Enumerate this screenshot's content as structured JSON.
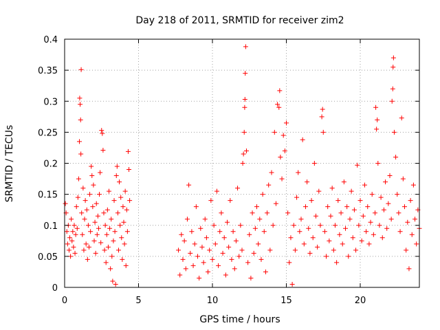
{
  "chart_data": {
    "type": "scatter",
    "title": "Day 218 of 2011, SRMTID for receiver zim2",
    "xlabel": "GPS time / hours",
    "ylabel": "SRMTID / TECUs",
    "xlim": [
      0,
      24
    ],
    "ylim": [
      0,
      0.4
    ],
    "xticks": [
      0,
      5,
      10,
      15,
      20
    ],
    "yticks": [
      0,
      0.05,
      0.1,
      0.15,
      0.2,
      0.25,
      0.3,
      0.35,
      0.4
    ],
    "xtick_labels": [
      "0",
      "5",
      "10",
      "15",
      "20"
    ],
    "ytick_labels": [
      "0",
      "0.05",
      "0.1",
      "0.15",
      "0.2",
      "0.25",
      "0.3",
      "0.35",
      "0.4"
    ],
    "grid": true,
    "marker": "+",
    "color": "#ff0000",
    "series": [
      {
        "name": "SRMTID",
        "points": [
          [
            0.05,
            0.135
          ],
          [
            0.1,
            0.12
          ],
          [
            0.15,
            0.09
          ],
          [
            0.2,
            0.07
          ],
          [
            0.25,
            0.1
          ],
          [
            0.3,
            0.06
          ],
          [
            0.35,
            0.08
          ],
          [
            0.4,
            0.05
          ],
          [
            0.45,
            0.11
          ],
          [
            0.5,
            0.075
          ],
          [
            0.55,
            0.09
          ],
          [
            0.6,
            0.065
          ],
          [
            0.65,
            0.1
          ],
          [
            0.7,
            0.055
          ],
          [
            0.75,
            0.085
          ],
          [
            0.8,
            0.13
          ],
          [
            0.85,
            0.095
          ],
          [
            0.9,
            0.145
          ],
          [
            0.95,
            0.175
          ],
          [
            1.0,
            0.235
          ],
          [
            1.02,
            0.305
          ],
          [
            1.05,
            0.295
          ],
          [
            1.08,
            0.27
          ],
          [
            1.1,
            0.215
          ],
          [
            1.12,
            0.351
          ],
          [
            1.15,
            0.12
          ],
          [
            1.2,
            0.085
          ],
          [
            1.25,
            0.16
          ],
          [
            1.3,
            0.06
          ],
          [
            1.35,
            0.11
          ],
          [
            1.4,
            0.14
          ],
          [
            1.45,
            0.07
          ],
          [
            1.5,
            0.125
          ],
          [
            1.55,
            0.045
          ],
          [
            1.6,
            0.1
          ],
          [
            1.65,
            0.065
          ],
          [
            1.7,
            0.15
          ],
          [
            1.75,
            0.09
          ],
          [
            1.8,
            0.195
          ],
          [
            1.85,
            0.18
          ],
          [
            1.9,
            0.13
          ],
          [
            1.95,
            0.165
          ],
          [
            2.0,
            0.075
          ],
          [
            2.05,
            0.105
          ],
          [
            2.1,
            0.055
          ],
          [
            2.15,
            0.135
          ],
          [
            2.2,
            0.085
          ],
          [
            2.25,
            0.115
          ],
          [
            2.3,
            0.095
          ],
          [
            2.35,
            0.15
          ],
          [
            2.4,
            0.185
          ],
          [
            2.45,
            0.072
          ],
          [
            2.5,
            0.253
          ],
          [
            2.55,
            0.248
          ],
          [
            2.6,
            0.221
          ],
          [
            2.65,
            0.12
          ],
          [
            2.7,
            0.06
          ],
          [
            2.75,
            0.1
          ],
          [
            2.8,
            0.04
          ],
          [
            2.85,
            0.085
          ],
          [
            2.9,
            0.125
          ],
          [
            2.95,
            0.065
          ],
          [
            3.0,
            0.155
          ],
          [
            3.05,
            0.095
          ],
          [
            3.1,
            0.03
          ],
          [
            3.15,
            0.11
          ],
          [
            3.2,
            0.05
          ],
          [
            3.25,
            0.01
          ],
          [
            3.3,
            0.075
          ],
          [
            3.35,
            0.14
          ],
          [
            3.4,
            0.09
          ],
          [
            3.45,
            0.005
          ],
          [
            3.5,
            0.18
          ],
          [
            3.55,
            0.195
          ],
          [
            3.6,
            0.12
          ],
          [
            3.65,
            0.06
          ],
          [
            3.7,
            0.17
          ],
          [
            3.75,
            0.1
          ],
          [
            3.8,
            0.145
          ],
          [
            3.85,
            0.08
          ],
          [
            3.9,
            0.045
          ],
          [
            3.95,
            0.13
          ],
          [
            4.0,
            0.105
          ],
          [
            4.05,
            0.07
          ],
          [
            4.1,
            0.155
          ],
          [
            4.15,
            0.035
          ],
          [
            4.2,
            0.125
          ],
          [
            4.25,
            0.09
          ],
          [
            4.3,
            0.219
          ],
          [
            4.35,
            0.19
          ],
          [
            4.4,
            0.14
          ],
          [
            7.7,
            0.06
          ],
          [
            7.8,
            0.02
          ],
          [
            7.9,
            0.085
          ],
          [
            8.0,
            0.045
          ],
          [
            8.1,
            0.075
          ],
          [
            8.2,
            0.03
          ],
          [
            8.3,
            0.11
          ],
          [
            8.4,
            0.165
          ],
          [
            8.5,
            0.055
          ],
          [
            8.6,
            0.09
          ],
          [
            8.7,
            0.035
          ],
          [
            8.8,
            0.07
          ],
          [
            8.9,
            0.13
          ],
          [
            9.0,
            0.05
          ],
          [
            9.1,
            0.015
          ],
          [
            9.2,
            0.095
          ],
          [
            9.3,
            0.065
          ],
          [
            9.4,
            0.04
          ],
          [
            9.5,
            0.11
          ],
          [
            9.6,
            0.08
          ],
          [
            9.7,
            0.025
          ],
          [
            9.8,
            0.06
          ],
          [
            9.9,
            0.14
          ],
          [
            10.0,
            0.045
          ],
          [
            10.1,
            0.1
          ],
          [
            10.2,
            0.07
          ],
          [
            10.3,
            0.155
          ],
          [
            10.4,
            0.035
          ],
          [
            10.5,
            0.09
          ],
          [
            10.6,
            0.12
          ],
          [
            10.7,
            0.055
          ],
          [
            10.8,
            0.08
          ],
          [
            10.9,
            0.02
          ],
          [
            11.0,
            0.105
          ],
          [
            11.1,
            0.065
          ],
          [
            11.2,
            0.14
          ],
          [
            11.3,
            0.045
          ],
          [
            11.4,
            0.09
          ],
          [
            11.5,
            0.03
          ],
          [
            11.6,
            0.075
          ],
          [
            11.7,
            0.16
          ],
          [
            11.8,
            0.05
          ],
          [
            11.9,
            0.1
          ],
          [
            12.0,
            0.06
          ],
          [
            12.05,
            0.2
          ],
          [
            12.1,
            0.215
          ],
          [
            12.15,
            0.25
          ],
          [
            12.18,
            0.29
          ],
          [
            12.2,
            0.303
          ],
          [
            12.22,
            0.345
          ],
          [
            12.25,
            0.388
          ],
          [
            12.3,
            0.22
          ],
          [
            12.4,
            0.04
          ],
          [
            12.5,
            0.085
          ],
          [
            12.6,
            0.015
          ],
          [
            12.7,
            0.12
          ],
          [
            12.8,
            0.055
          ],
          [
            12.9,
            0.095
          ],
          [
            13.0,
            0.13
          ],
          [
            13.1,
            0.07
          ],
          [
            13.2,
            0.11
          ],
          [
            13.3,
            0.045
          ],
          [
            13.4,
            0.15
          ],
          [
            13.5,
            0.09
          ],
          [
            13.6,
            0.025
          ],
          [
            13.7,
            0.12
          ],
          [
            13.8,
            0.165
          ],
          [
            13.9,
            0.06
          ],
          [
            14.0,
            0.185
          ],
          [
            14.1,
            0.1
          ],
          [
            14.2,
            0.25
          ],
          [
            14.3,
            0.135
          ],
          [
            14.4,
            0.295
          ],
          [
            14.5,
            0.29
          ],
          [
            14.55,
            0.317
          ],
          [
            14.6,
            0.21
          ],
          [
            14.7,
            0.175
          ],
          [
            14.8,
            0.245
          ],
          [
            14.9,
            0.22
          ],
          [
            15.0,
            0.265
          ],
          [
            15.1,
            0.12
          ],
          [
            15.2,
            0.04
          ],
          [
            15.3,
            0.08
          ],
          [
            15.4,
            0.005
          ],
          [
            15.5,
            0.1
          ],
          [
            15.6,
            0.06
          ],
          [
            15.7,
            0.145
          ],
          [
            15.8,
            0.185
          ],
          [
            15.9,
            0.09
          ],
          [
            16.0,
            0.11
          ],
          [
            16.1,
            0.238
          ],
          [
            16.2,
            0.07
          ],
          [
            16.3,
            0.13
          ],
          [
            16.4,
            0.17
          ],
          [
            16.5,
            0.095
          ],
          [
            16.6,
            0.055
          ],
          [
            16.7,
            0.14
          ],
          [
            16.8,
            0.08
          ],
          [
            16.9,
            0.2
          ],
          [
            17.0,
            0.115
          ],
          [
            17.1,
            0.065
          ],
          [
            17.2,
            0.155
          ],
          [
            17.3,
            0.1
          ],
          [
            17.4,
            0.275
          ],
          [
            17.45,
            0.287
          ],
          [
            17.5,
            0.25
          ],
          [
            17.6,
            0.09
          ],
          [
            17.7,
            0.05
          ],
          [
            17.8,
            0.13
          ],
          [
            17.9,
            0.075
          ],
          [
            18.0,
            0.115
          ],
          [
            18.1,
            0.16
          ],
          [
            18.2,
            0.06
          ],
          [
            18.3,
            0.1
          ],
          [
            18.4,
            0.04
          ],
          [
            18.5,
            0.14
          ],
          [
            18.6,
            0.085
          ],
          [
            18.7,
            0.12
          ],
          [
            18.8,
            0.07
          ],
          [
            18.9,
            0.17
          ],
          [
            19.0,
            0.095
          ],
          [
            19.1,
            0.13
          ],
          [
            19.2,
            0.05
          ],
          [
            19.3,
            0.11
          ],
          [
            19.4,
            0.155
          ],
          [
            19.5,
            0.08
          ],
          [
            19.6,
            0.125
          ],
          [
            19.7,
            0.06
          ],
          [
            19.8,
            0.197
          ],
          [
            19.9,
            0.1
          ],
          [
            20.0,
            0.14
          ],
          [
            20.1,
            0.075
          ],
          [
            20.2,
            0.115
          ],
          [
            20.3,
            0.165
          ],
          [
            20.4,
            0.09
          ],
          [
            20.5,
            0.13
          ],
          [
            20.6,
            0.07
          ],
          [
            20.7,
            0.105
          ],
          [
            20.8,
            0.15
          ],
          [
            20.9,
            0.085
          ],
          [
            21.0,
            0.12
          ],
          [
            21.05,
            0.29
          ],
          [
            21.1,
            0.255
          ],
          [
            21.15,
            0.27
          ],
          [
            21.2,
            0.2
          ],
          [
            21.3,
            0.1
          ],
          [
            21.4,
            0.145
          ],
          [
            21.5,
            0.08
          ],
          [
            21.6,
            0.125
          ],
          [
            21.7,
            0.17
          ],
          [
            21.8,
            0.095
          ],
          [
            21.9,
            0.135
          ],
          [
            22.0,
            0.18
          ],
          [
            22.1,
            0.11
          ],
          [
            22.15,
            0.3
          ],
          [
            22.2,
            0.32
          ],
          [
            22.22,
            0.355
          ],
          [
            22.25,
            0.37
          ],
          [
            22.3,
            0.25
          ],
          [
            22.4,
            0.21
          ],
          [
            22.5,
            0.15
          ],
          [
            22.6,
            0.12
          ],
          [
            22.7,
            0.09
          ],
          [
            22.8,
            0.273
          ],
          [
            22.9,
            0.175
          ],
          [
            23.0,
            0.13
          ],
          [
            23.1,
            0.06
          ],
          [
            23.2,
            0.105
          ],
          [
            23.3,
            0.03
          ],
          [
            23.4,
            0.14
          ],
          [
            23.5,
            0.085
          ],
          [
            23.6,
            0.165
          ],
          [
            23.7,
            0.11
          ],
          [
            23.8,
            0.07
          ],
          [
            23.9,
            0.125
          ],
          [
            24.0,
            0.095
          ]
        ]
      }
    ]
  }
}
